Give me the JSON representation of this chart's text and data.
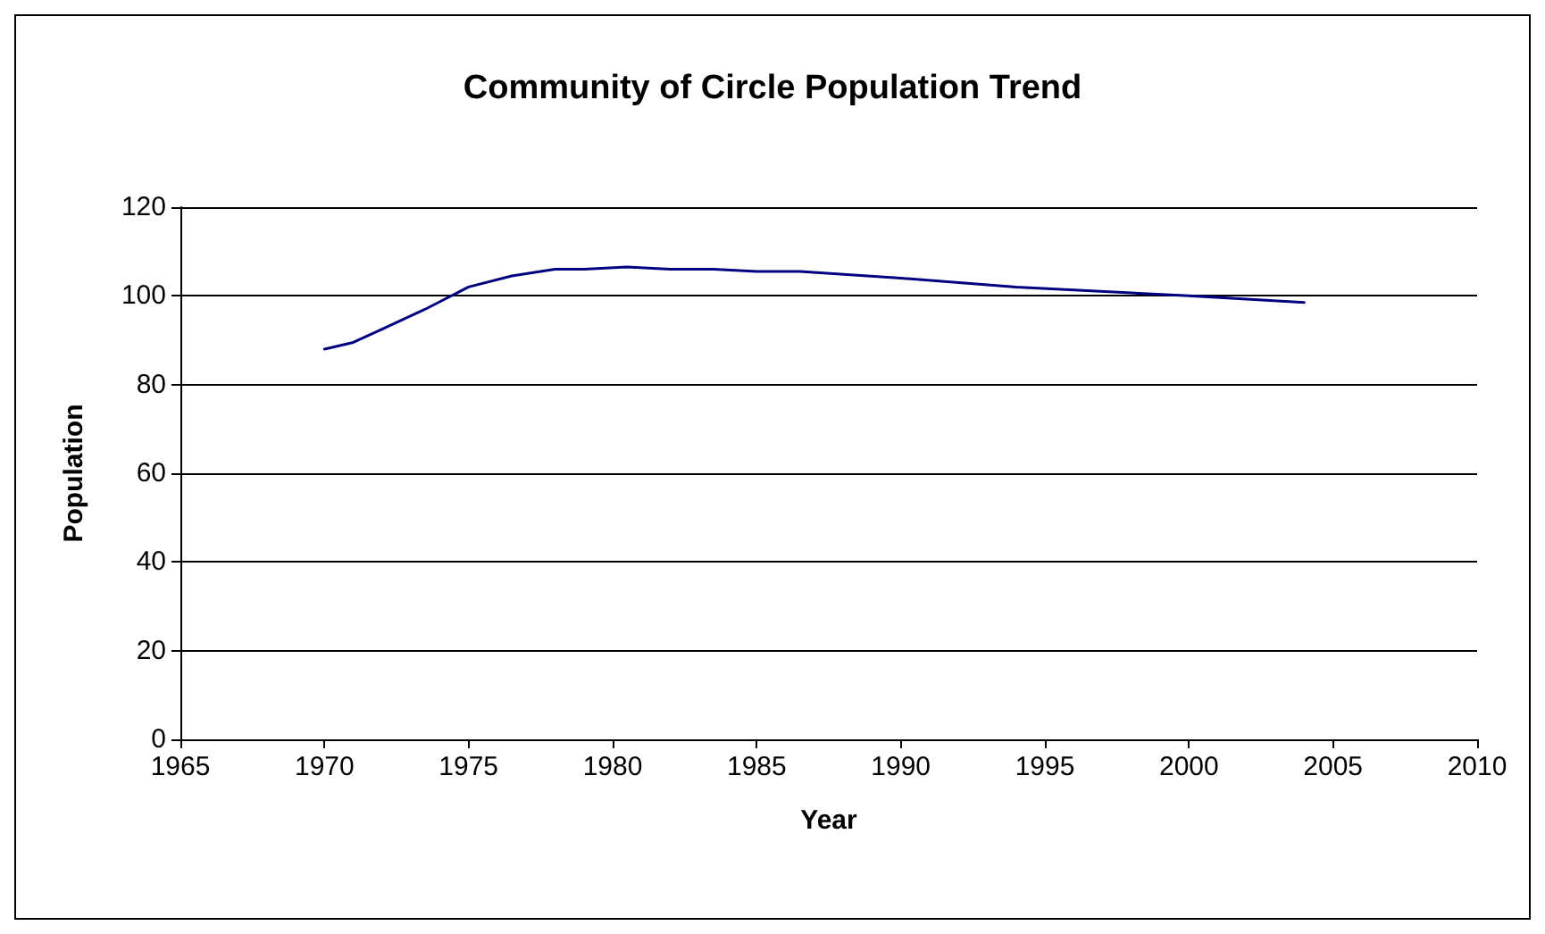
{
  "chart_data": {
    "type": "line",
    "title": "Community of Circle Population Trend",
    "xlabel": "Year",
    "ylabel": "Population",
    "x": [
      1970,
      1971,
      1972,
      1973.5,
      1975,
      1976.5,
      1978,
      1979,
      1980.5,
      1982,
      1983.5,
      1985,
      1986.5,
      1990,
      1994,
      2000,
      2004
    ],
    "series": [
      {
        "color": "#000080",
        "values": [
          88,
          89.5,
          92.5,
          97,
          102,
          104.5,
          106,
          106,
          106.5,
          106,
          106,
          105.5,
          105.5,
          104,
          102,
          100,
          98.5
        ]
      }
    ],
    "xlim": [
      1965,
      2010
    ],
    "xticks": [
      1965,
      1970,
      1975,
      1980,
      1985,
      1990,
      1995,
      2000,
      2005,
      2010
    ],
    "ylim": [
      0,
      120
    ],
    "yticks": [
      0,
      20,
      40,
      60,
      80,
      100,
      120
    ],
    "grid": "y",
    "marker": "none",
    "line_style": "solid"
  }
}
